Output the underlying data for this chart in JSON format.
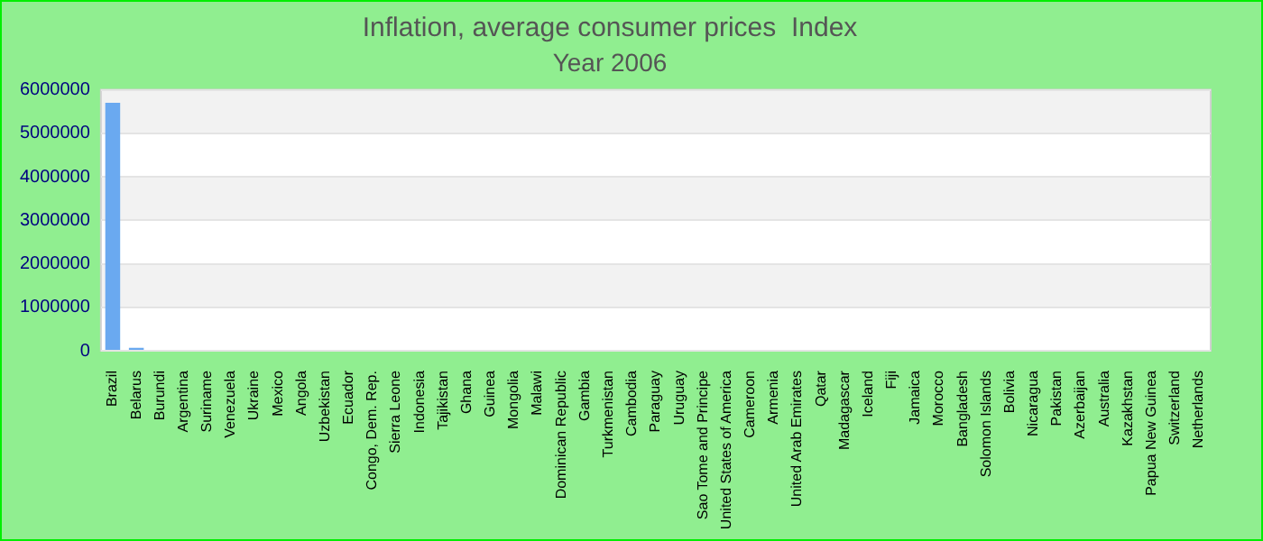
{
  "chart_data": {
    "type": "bar",
    "title": "Inflation, average consumer prices  Index",
    "subtitle": "Year 2006",
    "categories": [
      "Brazil",
      "Belarus",
      "Burundi",
      "Argentina",
      "Suriname",
      "Venezuela",
      "Ukraine",
      "Mexico",
      "Angola",
      "Uzbekistan",
      "Ecuador",
      "Congo, Dem. Rep.",
      "Sierra Leone",
      "Indonesia",
      "Tajikistan",
      "Ghana",
      "Guinea",
      "Mongolia",
      "Malawi",
      "Dominican Republic",
      "Gambia",
      "Turkmenistan",
      "Cambodia",
      "Paraguay",
      "Uruguay",
      "Sao Tome and Principe",
      "United States of America",
      "Cameroon",
      "Armenia",
      "United Arab Emirates",
      "Qatar",
      "Madagascar",
      "Iceland",
      "Fiji",
      "Jamaica",
      "Morocco",
      "Bangladesh",
      "Solomon Islands",
      "Bolivia",
      "Nicaragua",
      "Pakistan",
      "Azerbaijan",
      "Australia",
      "Kazakhstan",
      "Papua New Guinea",
      "Switzerland",
      "Netherlands"
    ],
    "values": [
      5700000,
      70000,
      0,
      0,
      0,
      0,
      0,
      0,
      0,
      0,
      0,
      0,
      0,
      0,
      0,
      0,
      0,
      0,
      0,
      0,
      0,
      0,
      0,
      0,
      0,
      0,
      0,
      0,
      0,
      0,
      0,
      0,
      0,
      0,
      0,
      0,
      0,
      0,
      0,
      0,
      0,
      0,
      0,
      0,
      0,
      0,
      0
    ],
    "color": "#6aa9f0",
    "ylim": [
      0,
      6000000
    ],
    "yticks": [
      0,
      1000000,
      2000000,
      3000000,
      4000000,
      5000000,
      6000000
    ],
    "grid": "y"
  }
}
